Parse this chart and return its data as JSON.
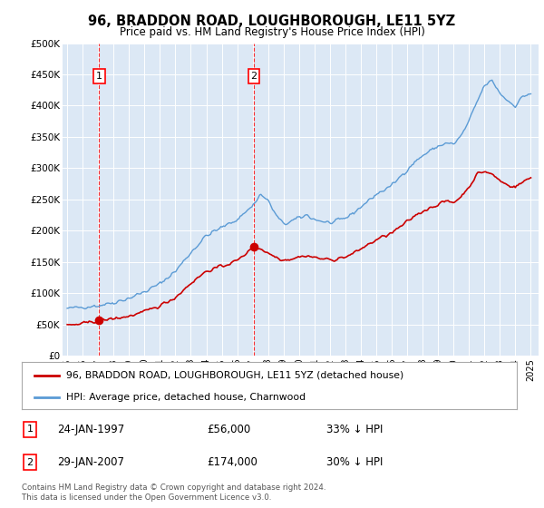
{
  "title": "96, BRADDON ROAD, LOUGHBOROUGH, LE11 5YZ",
  "subtitle": "Price paid vs. HM Land Registry's House Price Index (HPI)",
  "fig_bg_color": "#ffffff",
  "plot_bg_color": "#dce8f5",
  "grid_color": "#ffffff",
  "ylim": [
    0,
    500000
  ],
  "yticks": [
    0,
    50000,
    100000,
    150000,
    200000,
    250000,
    300000,
    350000,
    400000,
    450000,
    500000
  ],
  "ytick_labels": [
    "£0",
    "£50K",
    "£100K",
    "£150K",
    "£200K",
    "£250K",
    "£300K",
    "£350K",
    "£400K",
    "£450K",
    "£500K"
  ],
  "xlim_start": 1994.7,
  "xlim_end": 2025.5,
  "sale1_x": 1997.07,
  "sale1_y": 56000,
  "sale1_label": "1",
  "sale1_date": "24-JAN-1997",
  "sale1_price": "£56,000",
  "sale1_hpi": "33% ↓ HPI",
  "sale2_x": 2007.08,
  "sale2_y": 174000,
  "sale2_label": "2",
  "sale2_date": "29-JAN-2007",
  "sale2_price": "£174,000",
  "sale2_hpi": "30% ↓ HPI",
  "red_line_color": "#cc0000",
  "blue_line_color": "#5b9bd5",
  "legend_label_red": "96, BRADDON ROAD, LOUGHBOROUGH, LE11 5YZ (detached house)",
  "legend_label_blue": "HPI: Average price, detached house, Charnwood",
  "footer": "Contains HM Land Registry data © Crown copyright and database right 2024.\nThis data is licensed under the Open Government Licence v3.0."
}
